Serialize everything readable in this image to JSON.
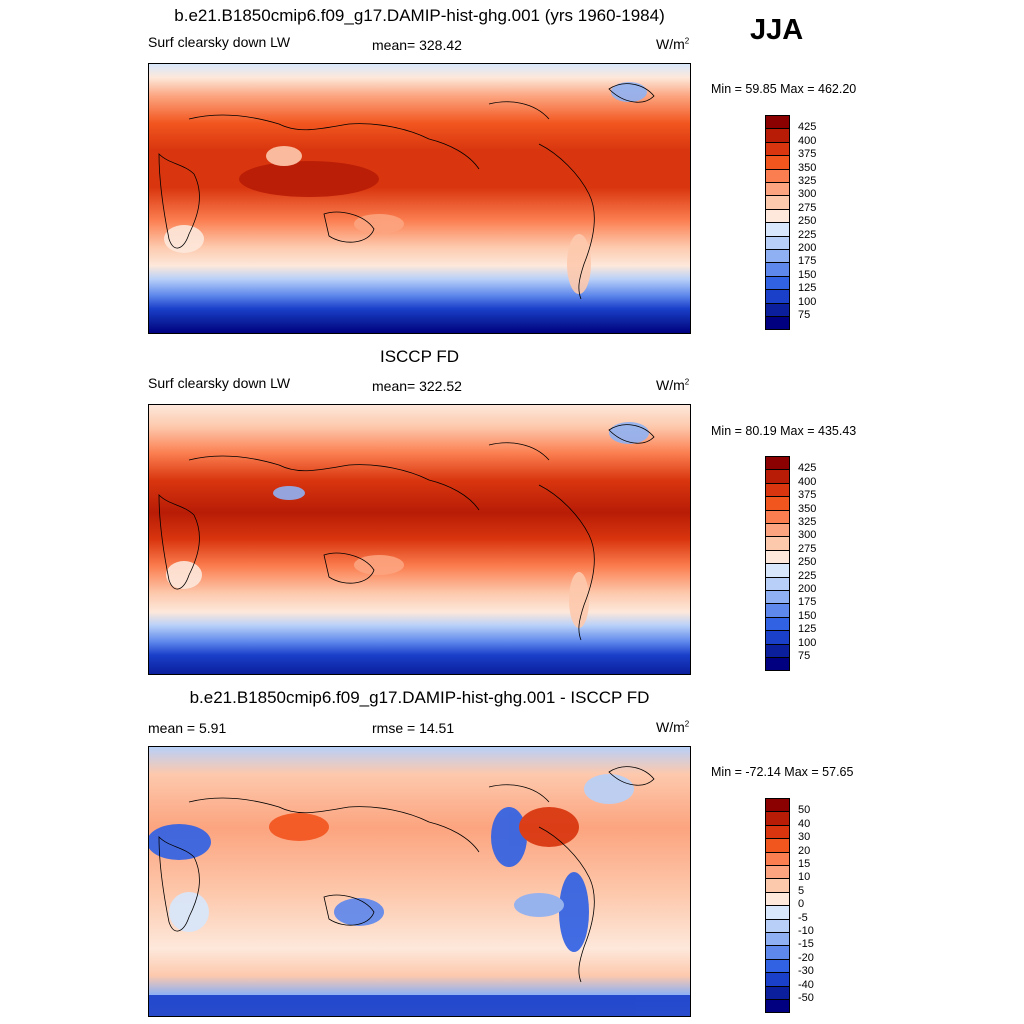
{
  "season": "JJA",
  "units_base": "W/m",
  "units_exp": "2",
  "chart_data": [
    {
      "type": "heatmap",
      "title": "b.e21.B1850cmip6.f09_g17.DAMIP-hist-ghg.001 (yrs 1960-1984)",
      "variable": "Surf clearsky down LW",
      "mean_text": "mean= 328.42",
      "minmax_text": "Min =  59.85 Max = 462.20",
      "colorbar_levels": [
        "425",
        "400",
        "375",
        "350",
        "325",
        "300",
        "275",
        "250",
        "225",
        "200",
        "175",
        "150",
        "125",
        "100",
        "75"
      ],
      "colors": [
        "#8b0000",
        "#b81c06",
        "#d9360f",
        "#f2561f",
        "#fb7e50",
        "#fca47f",
        "#fdc9ad",
        "#fde8db",
        "#d8e7fb",
        "#b8d0f8",
        "#8fb1f3",
        "#5f88ec",
        "#3262e4",
        "#1a3fc9",
        "#0b1f9c",
        "#000080"
      ]
    },
    {
      "type": "heatmap",
      "title": "ISCCP FD",
      "variable": "Surf clearsky down LW",
      "mean_text": "mean= 322.52",
      "minmax_text": "Min =  80.19 Max = 435.43",
      "colorbar_levels": [
        "425",
        "400",
        "375",
        "350",
        "325",
        "300",
        "275",
        "250",
        "225",
        "200",
        "175",
        "150",
        "125",
        "100",
        "75"
      ],
      "colors": [
        "#8b0000",
        "#b81c06",
        "#d9360f",
        "#f2561f",
        "#fb7e50",
        "#fca47f",
        "#fdc9ad",
        "#fde8db",
        "#d8e7fb",
        "#b8d0f8",
        "#8fb1f3",
        "#5f88ec",
        "#3262e4",
        "#1a3fc9",
        "#0b1f9c",
        "#000080"
      ]
    },
    {
      "type": "heatmap",
      "title": "b.e21.B1850cmip6.f09_g17.DAMIP-hist-ghg.001 - ISCCP FD",
      "mean_text": "mean =   5.91",
      "rmse_text": "rmse =   14.51",
      "minmax_text": "Min = -72.14 Max =  57.65",
      "colorbar_levels": [
        "50",
        "40",
        "30",
        "20",
        "15",
        "10",
        "5",
        "0",
        "-5",
        "-10",
        "-15",
        "-20",
        "-30",
        "-40",
        "-50"
      ],
      "colors": [
        "#8b0000",
        "#b81c06",
        "#d9360f",
        "#f2561f",
        "#fb7e50",
        "#fca47f",
        "#fdc9ad",
        "#fde8db",
        "#d8e7fb",
        "#b8d0f8",
        "#8fb1f3",
        "#5f88ec",
        "#3262e4",
        "#1a3fc9",
        "#0b1f9c",
        "#000080"
      ]
    }
  ]
}
